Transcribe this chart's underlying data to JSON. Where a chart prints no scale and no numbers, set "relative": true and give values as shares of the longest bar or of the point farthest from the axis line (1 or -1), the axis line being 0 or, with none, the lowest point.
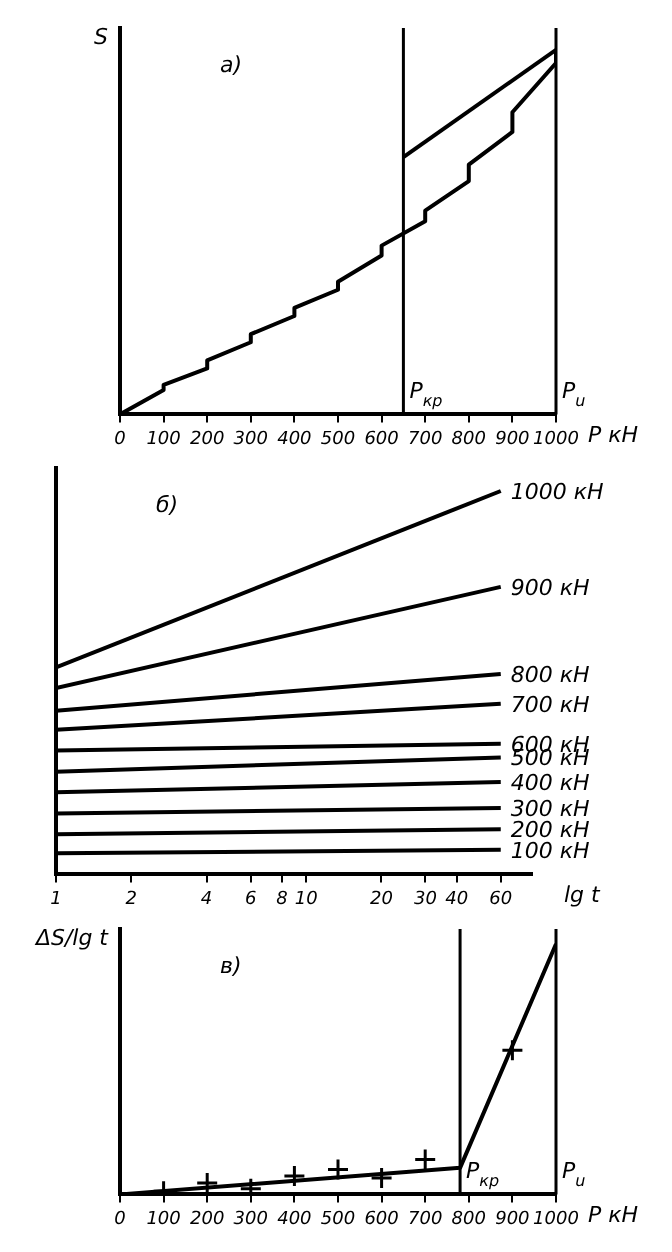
{
  "chart_data": [
    {
      "type": "line",
      "title": "а)",
      "xlabel": "P кН",
      "ylabel": "S",
      "relative": true,
      "xlim": [
        0,
        1000
      ],
      "xticks": [
        0,
        100,
        200,
        300,
        400,
        500,
        600,
        700,
        800,
        900,
        1000
      ],
      "grid": false,
      "legend": false,
      "marker": "none",
      "series": [
        {
          "color": "#000000",
          "x": [
            0,
            100,
            100,
            200,
            200,
            300,
            300,
            400,
            400,
            500,
            500,
            600,
            600,
            700,
            700,
            800,
            800,
            900,
            900,
            1000,
            1000
          ],
          "values": [
            0,
            0.067,
            0.081,
            0.126,
            0.148,
            0.198,
            0.22,
            0.27,
            0.292,
            0.342,
            0.364,
            0.436,
            0.463,
            0.53,
            0.559,
            0.64,
            0.685,
            0.775,
            0.829,
            0.964,
            1
          ]
        },
        {
          "color": "#000000",
          "x": [
            650,
            1000
          ],
          "values": [
            0.706,
            1
          ]
        }
      ],
      "ref_lines": [
        {
          "axis": "x",
          "value": 650,
          "label": "P$_{кр}$"
        },
        {
          "axis": "x",
          "value": 1000,
          "label": "P$_{u}$"
        }
      ]
    },
    {
      "type": "line",
      "title": "б)",
      "xlabel": "lg t",
      "relative": true,
      "log": "x",
      "xlim": [
        1,
        80
      ],
      "xticks": [
        1,
        2,
        4,
        6,
        8,
        10,
        20,
        30,
        40,
        60
      ],
      "grid": false,
      "legend": false,
      "marker": "none",
      "series": [
        {
          "name": "1000 кН",
          "color": "#000000",
          "x": [
            1,
            60
          ],
          "values": [
            0.54,
            1
          ]
        },
        {
          "name": "900 кН",
          "color": "#000000",
          "x": [
            1,
            60
          ],
          "values": [
            0.486,
            0.75
          ]
        },
        {
          "name": "800 кН",
          "color": "#000000",
          "x": [
            1,
            60
          ],
          "values": [
            0.427,
            0.523
          ]
        },
        {
          "name": "700 кН",
          "color": "#000000",
          "x": [
            1,
            60
          ],
          "values": [
            0.377,
            0.445
          ]
        },
        {
          "name": "600 кН",
          "color": "#000000",
          "x": [
            1,
            60
          ],
          "values": [
            0.323,
            0.341
          ]
        },
        {
          "name": "500 кН",
          "color": "#000000",
          "x": [
            1,
            60
          ],
          "values": [
            0.268,
            0.305
          ]
        },
        {
          "name": "400 кН",
          "color": "#000000",
          "x": [
            1,
            60
          ],
          "values": [
            0.214,
            0.241
          ]
        },
        {
          "name": "300 кН",
          "color": "#000000",
          "x": [
            1,
            60
          ],
          "values": [
            0.159,
            0.173
          ]
        },
        {
          "name": "200 кН",
          "color": "#000000",
          "x": [
            1,
            60
          ],
          "values": [
            0.105,
            0.118
          ]
        },
        {
          "name": "100 кН",
          "color": "#000000",
          "x": [
            1,
            60
          ],
          "values": [
            0.055,
            0.064
          ]
        }
      ]
    },
    {
      "type": "line",
      "title": "в)",
      "xlabel": "P кН",
      "ylabel": "ΔS/lg t",
      "relative": true,
      "xlim": [
        0,
        1000
      ],
      "xticks": [
        0,
        100,
        200,
        300,
        400,
        500,
        600,
        700,
        800,
        900,
        1000
      ],
      "grid": false,
      "legend": false,
      "marker": "none",
      "series": [
        {
          "color": "#000000",
          "x": [
            0,
            780,
            1000
          ],
          "values": [
            0,
            0.106,
            1
          ]
        },
        {
          "type": "scatter",
          "marker": "cross",
          "color": "#000000",
          "x": [
            100,
            200,
            300,
            400,
            500,
            600,
            700,
            900
          ],
          "values": [
            0.013,
            0.046,
            0.023,
            0.073,
            0.099,
            0.066,
            0.139,
            0.576
          ]
        }
      ],
      "ref_lines": [
        {
          "axis": "x",
          "value": 780,
          "label": "P$_{кр}$"
        },
        {
          "axis": "x",
          "value": 1000,
          "label": "P$_{u}$"
        }
      ]
    }
  ]
}
